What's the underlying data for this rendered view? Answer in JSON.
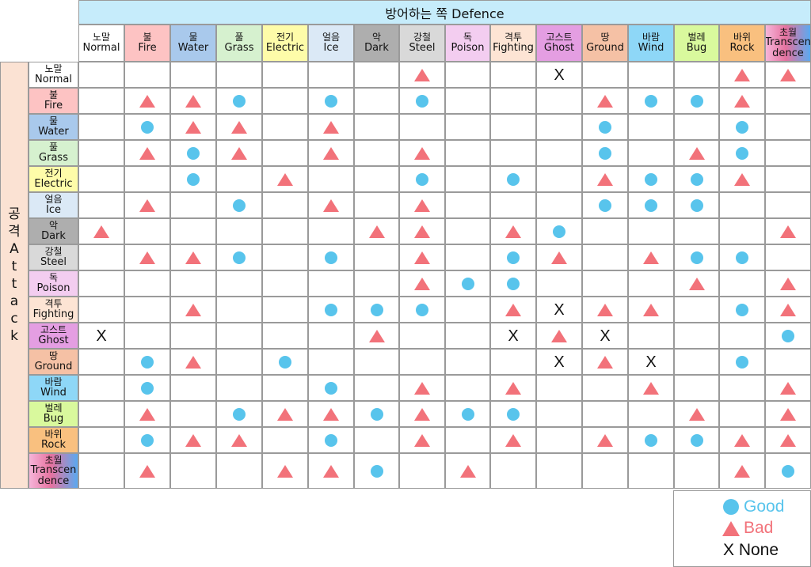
{
  "defence_title": "방어하는 쪽 Defence",
  "attack_title_chars": [
    "공",
    "격",
    "A",
    "t",
    "t",
    "a",
    "c",
    "k"
  ],
  "types": [
    {
      "ko": "노말",
      "en": "Normal",
      "color": "#ffffff"
    },
    {
      "ko": "불",
      "en": "Fire",
      "color": "#fdc3c3"
    },
    {
      "ko": "물",
      "en": "Water",
      "color": "#a9c9ec"
    },
    {
      "ko": "풀",
      "en": "Grass",
      "color": "#d6f1cf"
    },
    {
      "ko": "전기",
      "en": "Electric",
      "color": "#fefca9"
    },
    {
      "ko": "얼음",
      "en": "Ice",
      "color": "#dbe9f6"
    },
    {
      "ko": "악",
      "en": "Dark",
      "color": "#aeaeae"
    },
    {
      "ko": "강철",
      "en": "Steel",
      "color": "#d9d9d9"
    },
    {
      "ko": "독",
      "en": "Poison",
      "color": "#f3cdf0"
    },
    {
      "ko": "격투",
      "en": "Fighting",
      "color": "#fde4d4"
    },
    {
      "ko": "고스트",
      "en": "Ghost",
      "color": "#e49ee2"
    },
    {
      "ko": "땅",
      "en": "Ground",
      "color": "#f5c1a5"
    },
    {
      "ko": "바람",
      "en": "Wind",
      "color": "#8ed7f7"
    },
    {
      "ko": "벌레",
      "en": "Bug",
      "color": "#d9f99d"
    },
    {
      "ko": "바위",
      "en": "Rock",
      "color": "#f9c07f"
    },
    {
      "ko": "초월",
      "en": "Transcendence",
      "en_lines": [
        "Transcen",
        "dence"
      ],
      "color": "gradient"
    }
  ],
  "matrix": [
    "...............",
    "",
    "",
    "",
    "",
    "",
    "",
    "",
    "",
    "",
    "",
    "",
    "",
    "",
    "",
    ""
  ],
  "grid": [
    [
      "",
      "",
      "",
      "",
      "",
      "",
      "",
      "B",
      "",
      "",
      "X",
      "",
      "",
      "",
      "B",
      "B"
    ],
    [
      "",
      "B",
      "B",
      "G",
      "",
      "G",
      "",
      "G",
      "",
      "",
      "",
      "B",
      "G",
      "G",
      "B",
      ""
    ],
    [
      "",
      "G",
      "B",
      "B",
      "",
      "B",
      "",
      "",
      "",
      "",
      "",
      "G",
      "",
      "",
      "G",
      ""
    ],
    [
      "",
      "B",
      "G",
      "B",
      "",
      "B",
      "",
      "B",
      "",
      "",
      "",
      "G",
      "",
      "B",
      "G",
      ""
    ],
    [
      "",
      "",
      "G",
      "",
      "B",
      "",
      "",
      "G",
      "",
      "G",
      "",
      "B",
      "G",
      "G",
      "B",
      ""
    ],
    [
      "",
      "B",
      "",
      "G",
      "",
      "B",
      "",
      "B",
      "",
      "",
      "",
      "G",
      "G",
      "G",
      "",
      ""
    ],
    [
      "B",
      "",
      "",
      "",
      "",
      "",
      "B",
      "B",
      "",
      "B",
      "G",
      "",
      "",
      "",
      "",
      "B"
    ],
    [
      "",
      "B",
      "B",
      "G",
      "",
      "G",
      "",
      "B",
      "",
      "G",
      "B",
      "",
      "B",
      "G",
      "G",
      ""
    ],
    [
      "",
      "",
      "",
      "",
      "",
      "",
      "",
      "B",
      "G",
      "G",
      "",
      "",
      "",
      "B",
      "",
      "B"
    ],
    [
      "",
      "",
      "B",
      "",
      "",
      "G",
      "G",
      "G",
      "",
      "B",
      "X",
      "B",
      "B",
      "",
      "G",
      "B"
    ],
    [
      "X",
      "",
      "",
      "",
      "",
      "",
      "B",
      "",
      "",
      "X",
      "B",
      "X",
      "",
      "",
      "",
      "G"
    ],
    [
      "",
      "G",
      "B",
      "",
      "G",
      "",
      "",
      "",
      "",
      "",
      "X",
      "B",
      "X",
      "",
      "G",
      ""
    ],
    [
      "",
      "G",
      "",
      "",
      "",
      "G",
      "",
      "B",
      "",
      "B",
      "",
      "",
      "B",
      "",
      "",
      "B"
    ],
    [
      "",
      "B",
      "",
      "G",
      "B",
      "B",
      "G",
      "B",
      "G",
      "G",
      "",
      "",
      "",
      "B",
      "",
      "B"
    ],
    [
      "",
      "G",
      "B",
      "B",
      "",
      "G",
      "",
      "B",
      "",
      "B",
      "",
      "B",
      "G",
      "G",
      "B",
      "B"
    ],
    [
      "",
      "B",
      "",
      "",
      "B",
      "B",
      "G",
      "",
      "B",
      "",
      "",
      "",
      "",
      "",
      "B",
      "G"
    ]
  ],
  "legend": {
    "good": "Good",
    "bad": "Bad",
    "none": "X None",
    "good_color": "#58c4ec",
    "bad_color": "#f2727a"
  }
}
